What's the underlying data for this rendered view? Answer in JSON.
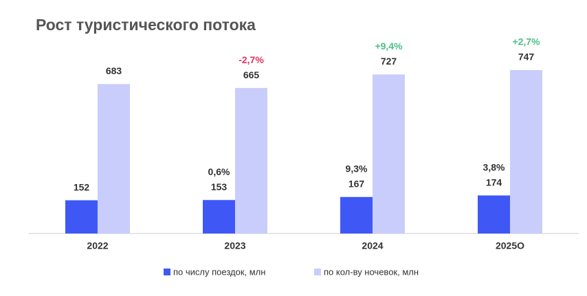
{
  "chart_data": {
    "type": "bar",
    "title": "Рост туристического потока",
    "categories": [
      "2022",
      "2023",
      "2024",
      "2025О"
    ],
    "series": [
      {
        "name": "по числу поездок, млн",
        "color": "#3f58f5",
        "values": [
          152,
          153,
          167,
          174
        ],
        "growth_labels": [
          null,
          "0,6%",
          "9,3%",
          "3,8%"
        ],
        "growth_colors": [
          null,
          "#333333",
          "#333333",
          "#333333"
        ]
      },
      {
        "name": "по кол-ву ночевок, млн",
        "color": "#c9cdfb",
        "values": [
          683,
          665,
          727,
          747
        ],
        "growth_labels": [
          null,
          "-2,7%",
          "+9,4%",
          "+2,7%"
        ],
        "growth_colors": [
          null,
          "#e0335e",
          "#4cbf8a",
          "#4cbf8a"
        ]
      }
    ]
  }
}
